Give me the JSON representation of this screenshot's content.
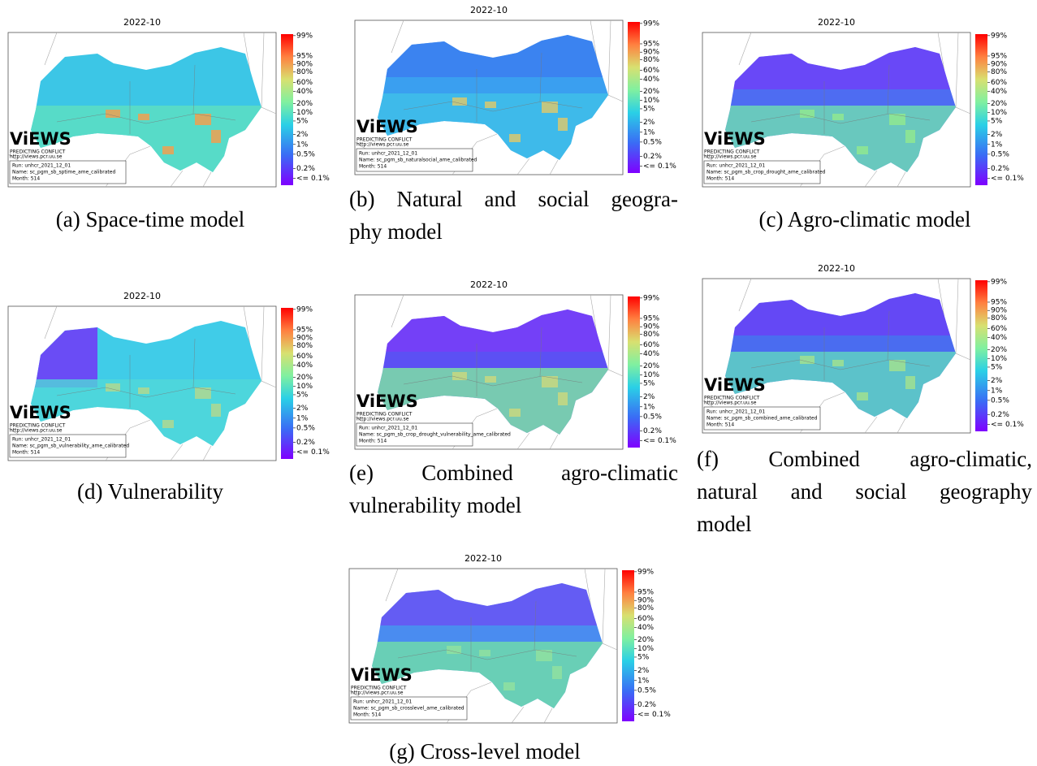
{
  "logo": "ViEWS",
  "tagline": "PREDICTING CONFLICT",
  "url": "http://views.pcr.uu.se",
  "colorbar_labels": [
    "99%",
    "95%",
    "90%",
    "80%",
    "60%",
    "40%",
    "20%",
    "10%",
    "5%",
    "2%",
    "1%",
    "0.5%",
    "0.2%",
    "<= 0.1%"
  ],
  "panels": [
    {
      "title": "2022-10",
      "run": "Run: unhcr_2021_12_01",
      "name": "Name: sc_pgm_sb_sptime_ame_calibrated",
      "month": "Month: 514",
      "caption": [
        "(a) Space-time model"
      ]
    },
    {
      "title": "2022-10",
      "run": "Run: unhcr_2021_12_01",
      "name": "Name: sc_pgm_sb_naturalsocial_ame_calibrated",
      "month": "Month: 514",
      "caption": [
        "(b) Natural and social geogra-",
        "phy model"
      ]
    },
    {
      "title": "2022-10",
      "run": "Run: unhcr_2021_12_01",
      "name": "Name: sc_pgm_sb_crop_drought_ame_calibrated",
      "month": "Month: 514",
      "caption": [
        "(c) Agro-climatic model"
      ]
    },
    {
      "title": "2022-10",
      "run": "Run: unhcr_2021_12_01",
      "name": "Name: sc_pgm_sb_vulnerability_ame_calibrated",
      "month": "Month: 514",
      "caption": [
        "(d) Vulnerability"
      ]
    },
    {
      "title": "2022-10",
      "run": "Run: unhcr_2021_12_01",
      "name": "Name: sc_pgm_sb_crop_drought_vulnerability_ame_calibrated",
      "month": "Month: 514",
      "caption": [
        "(e) Combined agro-climatic",
        "vulnerability model"
      ]
    },
    {
      "title": "2022-10",
      "run": "Run: unhcr_2021_12_01",
      "name": "Name: sc_pgm_sb_combined_ame_calibrated",
      "month": "Month: 514",
      "caption": [
        "(f) Combined agro-climatic,",
        "natural and social geography",
        "model"
      ]
    },
    {
      "title": "2022-10",
      "run": "Run: unhcr_2021_12_01",
      "name": "Name: sc_pgm_sb_crosslevel_ame_calibrated",
      "month": "Month: 514",
      "caption": [
        "(g) Cross-level model"
      ]
    }
  ]
}
